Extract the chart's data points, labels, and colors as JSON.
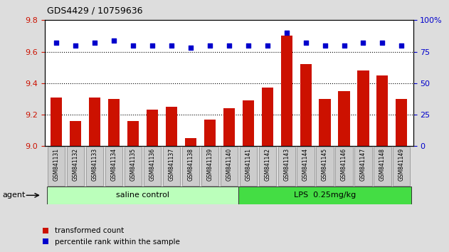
{
  "title": "GDS4429 / 10759636",
  "categories": [
    "GSM841131",
    "GSM841132",
    "GSM841133",
    "GSM841134",
    "GSM841135",
    "GSM841136",
    "GSM841137",
    "GSM841138",
    "GSM841139",
    "GSM841140",
    "GSM841141",
    "GSM841142",
    "GSM841143",
    "GSM841144",
    "GSM841145",
    "GSM841146",
    "GSM841147",
    "GSM841148",
    "GSM841149"
  ],
  "bar_values": [
    9.31,
    9.16,
    9.31,
    9.3,
    9.16,
    9.23,
    9.25,
    9.05,
    9.17,
    9.24,
    9.29,
    9.37,
    9.7,
    9.52,
    9.3,
    9.35,
    9.48,
    9.45,
    9.3
  ],
  "percentile_values": [
    82,
    80,
    82,
    84,
    80,
    80,
    80,
    78,
    80,
    80,
    80,
    80,
    90,
    82,
    80,
    80,
    82,
    82,
    80
  ],
  "bar_color": "#cc1100",
  "percentile_color": "#0000cc",
  "ylim_left": [
    9.0,
    9.8
  ],
  "ylim_right": [
    0,
    100
  ],
  "yticks_left": [
    9.0,
    9.2,
    9.4,
    9.6,
    9.8
  ],
  "yticks_right": [
    0,
    25,
    50,
    75,
    100
  ],
  "grid_values": [
    9.2,
    9.4,
    9.6
  ],
  "groups": [
    {
      "label": "saline control",
      "start": 0,
      "end": 9,
      "color": "#bbffbb"
    },
    {
      "label": "LPS  0.25mg/kg",
      "start": 10,
      "end": 18,
      "color": "#44dd44"
    }
  ],
  "agent_label": "agent",
  "legend_bar_label": "transformed count",
  "legend_pct_label": "percentile rank within the sample",
  "fig_bg_color": "#dddddd",
  "plot_bg_color": "#ffffff",
  "xtick_box_color": "#cccccc"
}
